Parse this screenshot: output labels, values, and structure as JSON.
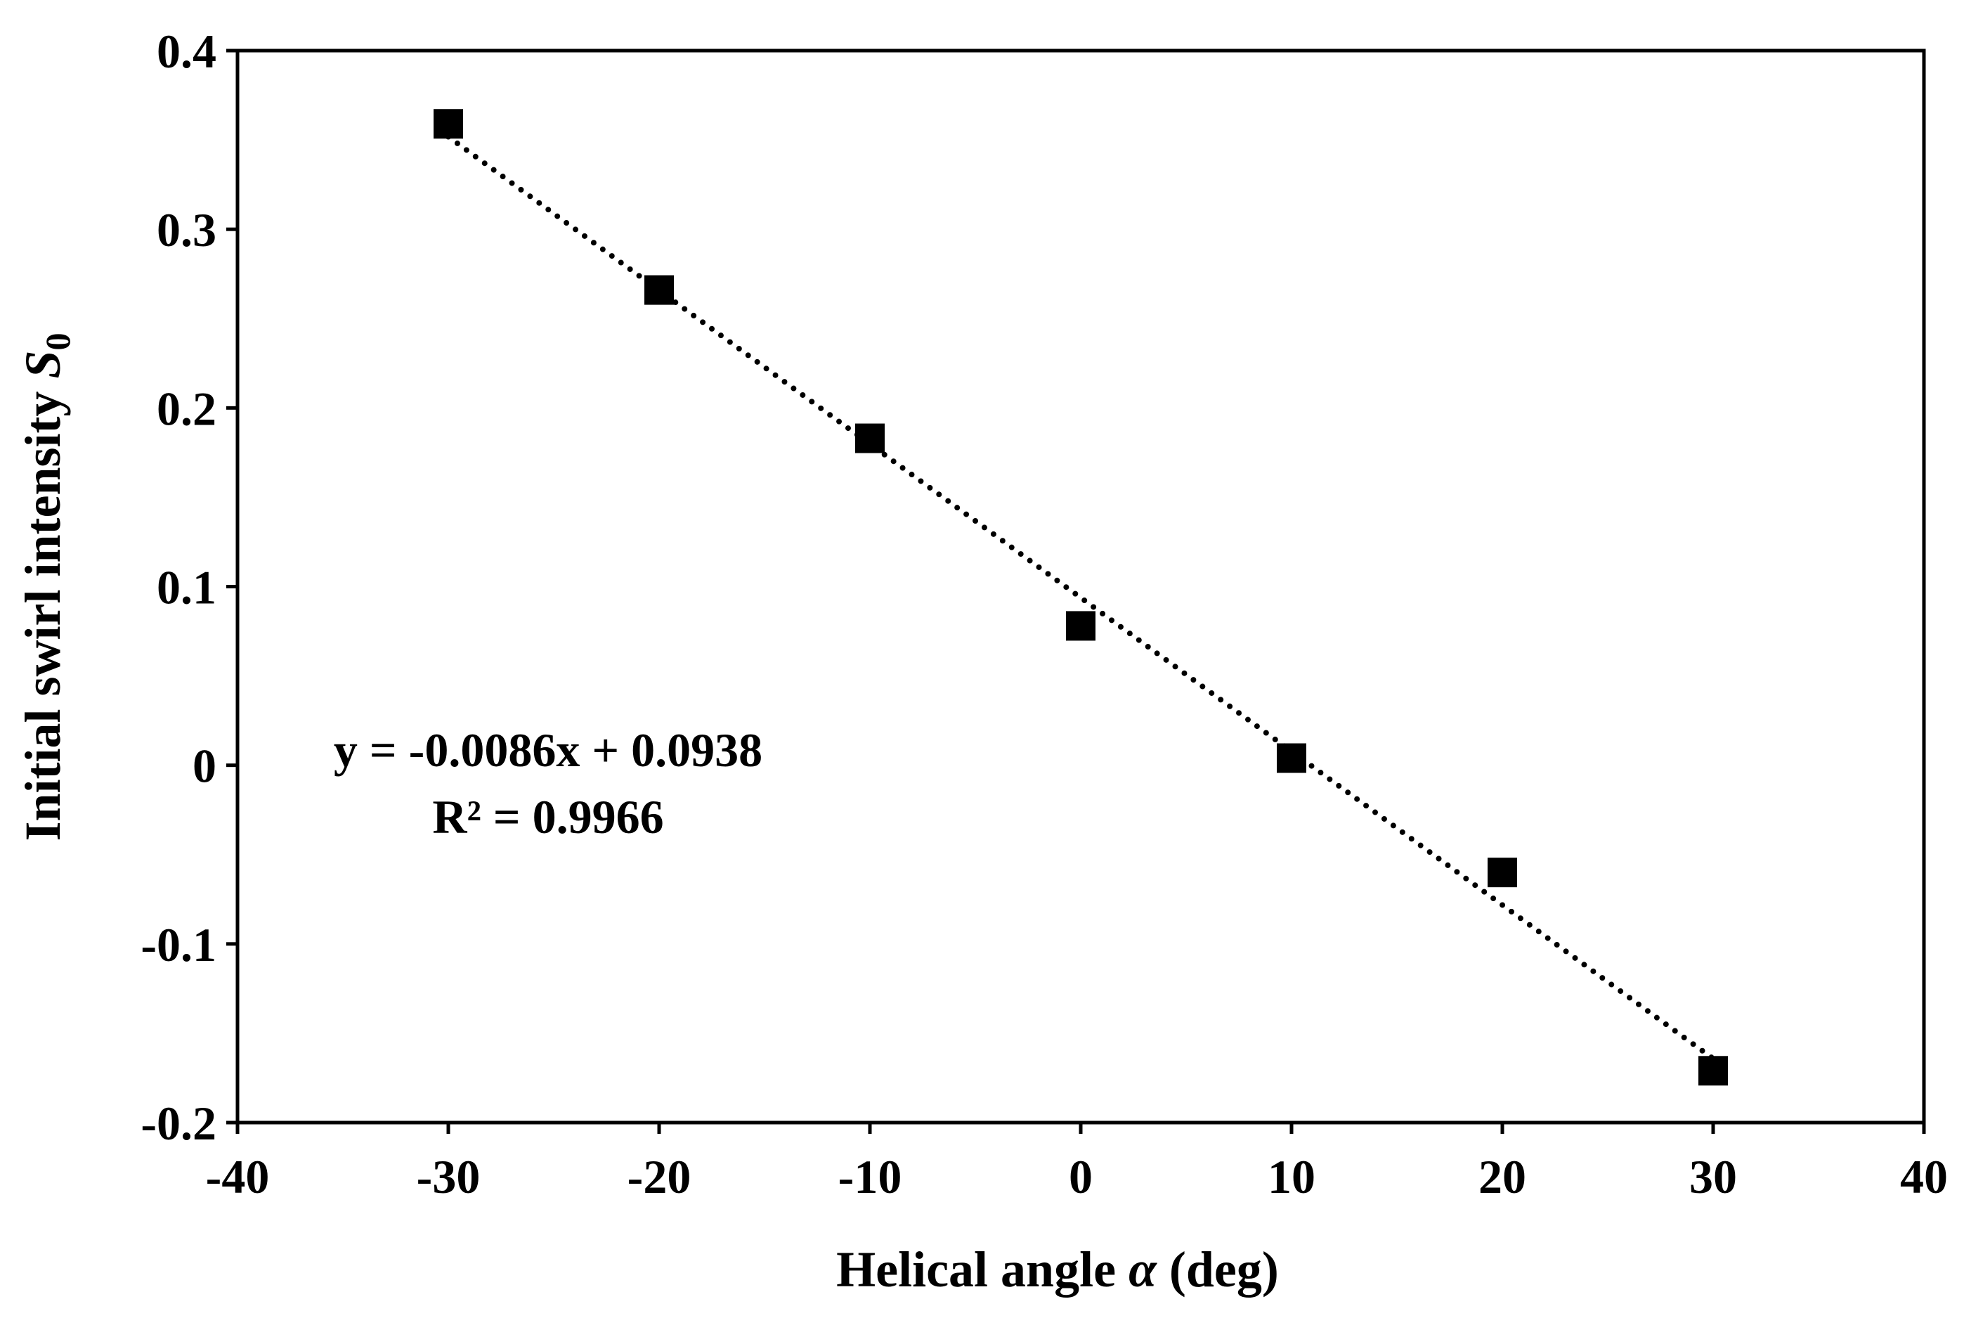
{
  "chart_data": {
    "type": "scatter",
    "title": "",
    "xlabel": {
      "prefix": "Helical angle ",
      "symbol": "α",
      "suffix": " (deg)"
    },
    "ylabel": {
      "prefix": "Initial swirl intensity ",
      "symbol": "S",
      "subscript": "0"
    },
    "xlim": [
      -40,
      40
    ],
    "ylim": [
      -0.2,
      0.4
    ],
    "xticks": [
      -40,
      -30,
      -20,
      -10,
      0,
      10,
      20,
      30,
      40
    ],
    "xtick_labels": [
      "-40",
      "-30",
      "-20",
      "-10",
      "0",
      "10",
      "20",
      "30",
      "40"
    ],
    "yticks": [
      -0.2,
      -0.1,
      0,
      0.1,
      0.2,
      0.3,
      0.4
    ],
    "ytick_labels": [
      "-0.2",
      "-0.1",
      "0",
      "0.1",
      "0.2",
      "0.3",
      "0.4"
    ],
    "grid": false,
    "legend": "none",
    "series": [
      {
        "name": "S0",
        "marker": "square",
        "color": "#000000",
        "x": [
          -30,
          -20,
          -10,
          0,
          10,
          20,
          30
        ],
        "y": [
          0.359,
          0.266,
          0.183,
          0.078,
          0.004,
          -0.06,
          -0.171
        ]
      }
    ],
    "trendline": {
      "type": "linear",
      "style": "dotted",
      "color": "#000000",
      "slope": -0.0086,
      "intercept": 0.0938,
      "x_range": [
        -30,
        30
      ],
      "equation_label": "y = -0.0086x + 0.0938",
      "r2_label": "R² = 0.9966"
    }
  }
}
